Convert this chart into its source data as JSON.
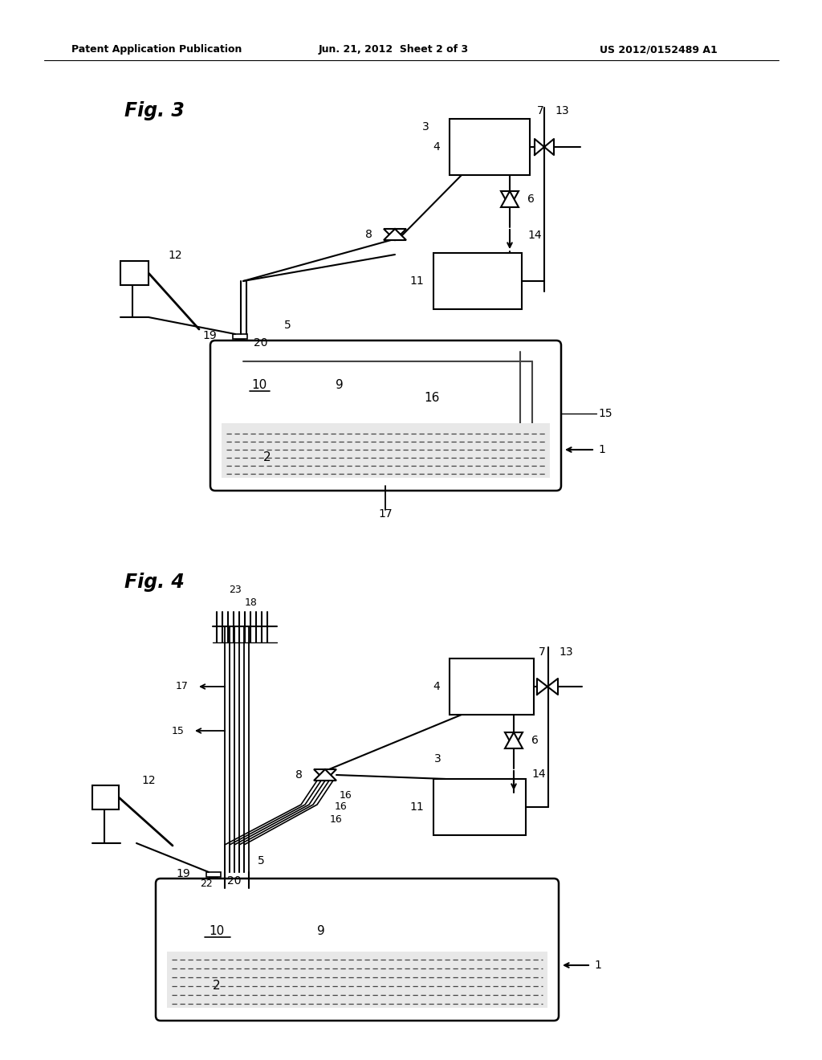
{
  "page_title_left": "Patent Application Publication",
  "page_title_center": "Jun. 21, 2012  Sheet 2 of 3",
  "page_title_right": "US 2012/0152489 A1",
  "fig3_label": "Fig. 3",
  "fig4_label": "Fig. 4",
  "background_color": "#ffffff",
  "line_color": "#000000"
}
